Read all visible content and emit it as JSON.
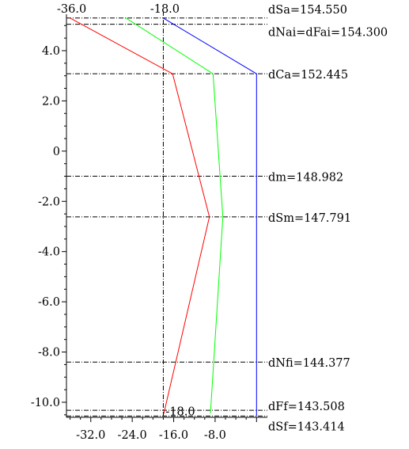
{
  "chart_data": {
    "type": "line",
    "x_ticks": [
      "-32.0",
      "-24.0",
      "-16.0",
      "-8.0"
    ],
    "y_ticks": [
      "4.0",
      "2.0",
      "0",
      "-2.0",
      "-4.0",
      "-6.0",
      "-8.0",
      "-10.0"
    ],
    "top_labels": [
      {
        "text": "-36.0",
        "x": -36.0
      },
      {
        "text": "-18.0",
        "x": -18.0
      }
    ],
    "bottom_label": {
      "text": "-18.0",
      "x": -18.0,
      "y": -10.55
    },
    "vertical_dashdot_x": -18.0,
    "ylim": [
      -10.6,
      5.45
    ],
    "xlim": [
      -36.7,
      2.4
    ],
    "levels": [
      {
        "name": "dSa",
        "label": "dSa=154.550",
        "y": 5.3
      },
      {
        "name": "dNai",
        "label": "dNai=dFai=154.300",
        "y": 5.05
      },
      {
        "name": "dCa",
        "label": "dCa=152.445",
        "y": 3.08
      },
      {
        "name": "dm",
        "label": "dm=148.982",
        "y": -1.0
      },
      {
        "name": "dSm",
        "label": "dSm=147.791",
        "y": -2.62
      },
      {
        "name": "dNfi",
        "label": "dNfi=144.377",
        "y": -8.4
      },
      {
        "name": "dFf",
        "label": "dFf=143.508",
        "y": -10.32
      },
      {
        "name": "dSf",
        "label": "dSf=143.414",
        "y": -10.55
      }
    ],
    "series": [
      {
        "color": "#ff0000",
        "points": [
          [
            -36.0,
            5.3
          ],
          [
            -16.2,
            3.08
          ],
          [
            -9.1,
            -2.62
          ],
          [
            -17.9,
            -10.45
          ]
        ]
      },
      {
        "color": "#00ff00",
        "points": [
          [
            -25.2,
            5.3
          ],
          [
            -8.4,
            3.08
          ],
          [
            -6.5,
            -2.62
          ],
          [
            -8.9,
            -10.45
          ]
        ]
      },
      {
        "color": "#0000ff",
        "points": [
          [
            -18.0,
            5.3
          ],
          [
            0.0,
            3.08
          ],
          [
            0.0,
            -10.55
          ]
        ]
      }
    ]
  }
}
